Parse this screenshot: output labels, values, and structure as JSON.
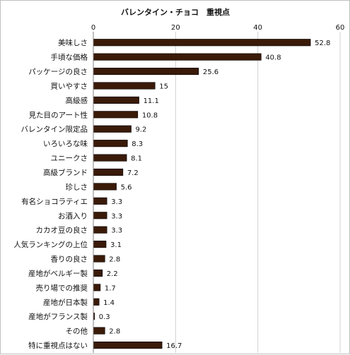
{
  "chart_data": {
    "type": "bar",
    "orientation": "horizontal",
    "title": "バレンタイン・チョコ　重視点",
    "xlim": [
      0,
      60
    ],
    "x_ticks": [
      "0",
      "20",
      "40",
      "60"
    ],
    "grid": true,
    "bar_color": "#3a1a08",
    "categories": [
      "美味しさ",
      "手頃な価格",
      "パッケージの良さ",
      "買いやすさ",
      "高級感",
      "見た目のアート性",
      "バレンタイン限定品",
      "いろいろな味",
      "ユニークさ",
      "高級ブランド",
      "珍しさ",
      "有名ショコラティエ",
      "お酒入り",
      "カカオ豆の良さ",
      "人気ランキングの上位",
      "香りの良さ",
      "産地がベルギー製",
      "売り場での推奨",
      "産地が日本製",
      "産地がフランス製",
      "その他",
      "特に重視点はない"
    ],
    "values": [
      52.8,
      40.8,
      25.6,
      15,
      11.1,
      10.8,
      9.2,
      8.3,
      8.1,
      7.2,
      5.6,
      3.3,
      3.3,
      3.3,
      3.1,
      2.8,
      2.2,
      1.7,
      1.4,
      0.3,
      2.8,
      16.7
    ],
    "value_labels": [
      "52.8",
      "40.8",
      "25.6",
      "15",
      "11.1",
      "10.8",
      "9.2",
      "8.3",
      "8.1",
      "7.2",
      "5.6",
      "3.3",
      "3.3",
      "3.3",
      "3.1",
      "2.8",
      "2.2",
      "1.7",
      "1.4",
      "0.3",
      "2.8",
      "16.7"
    ]
  }
}
